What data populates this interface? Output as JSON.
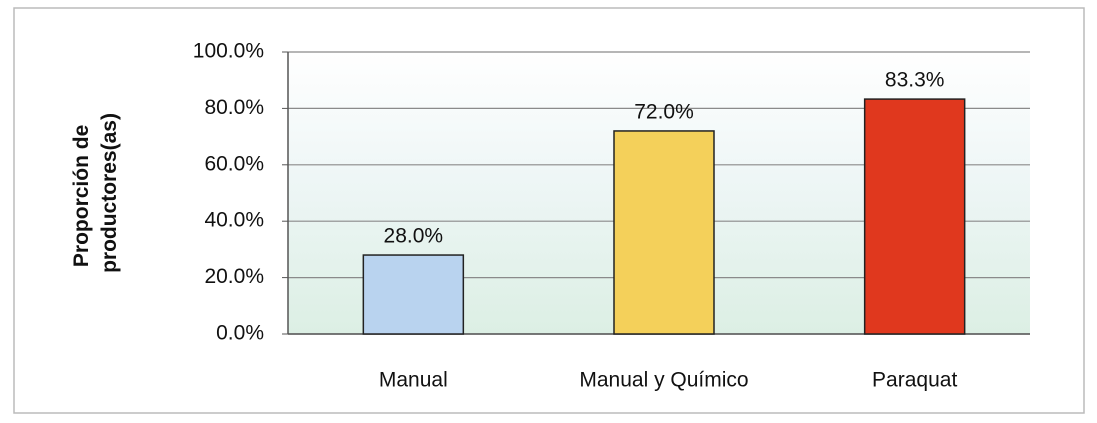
{
  "chart_data": {
    "type": "bar",
    "y_label": [
      "Proporción de",
      "productores(as)"
    ],
    "categories": [
      "Manual",
      "Manual y Químico",
      "Paraquat"
    ],
    "values": [
      28.0,
      72.0,
      83.3
    ],
    "value_labels": [
      "28.0%",
      "72.0%",
      "83.3%"
    ],
    "colors": [
      "#b9d3ef",
      "#f4d05a",
      "#e0381e"
    ],
    "ylim": [
      0,
      100
    ],
    "yticks": [
      {
        "value": 0,
        "label": "0.0%"
      },
      {
        "value": 20,
        "label": "20.0%"
      },
      {
        "value": 40,
        "label": "40.0%"
      },
      {
        "value": 60,
        "label": "60.0%"
      },
      {
        "value": 80,
        "label": "80.0%"
      },
      {
        "value": 100,
        "label": "100.0%"
      }
    ],
    "grid": true
  }
}
